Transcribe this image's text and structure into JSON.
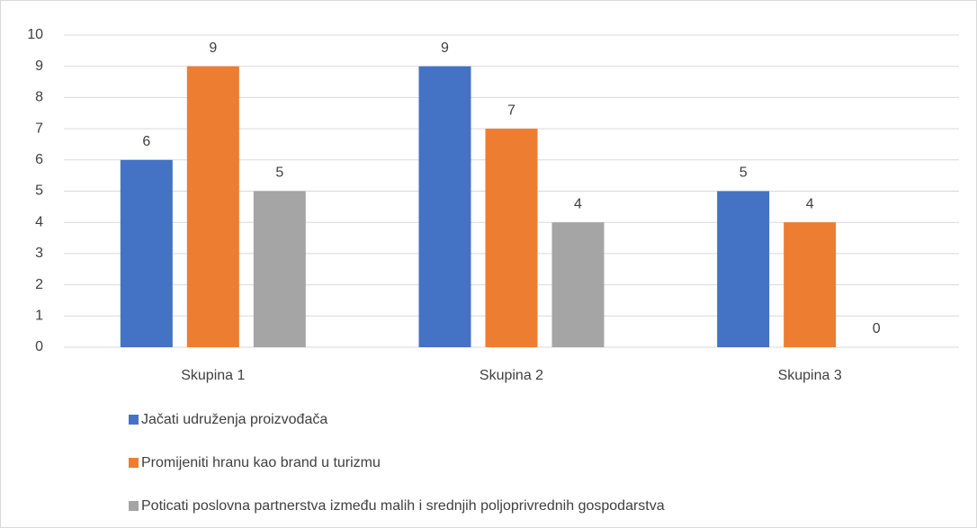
{
  "chart_data": {
    "type": "bar",
    "categories": [
      "Skupina 1",
      "Skupina 2",
      "Skupina 3"
    ],
    "series": [
      {
        "name": "Jačati udruženja proizvođača",
        "color": "#4472c4",
        "values": [
          6,
          9,
          5
        ]
      },
      {
        "name": "Promijeniti hranu kao brand u turizmu",
        "color": "#ed7d31",
        "values": [
          9,
          7,
          4
        ]
      },
      {
        "name": "Poticati poslovna partnerstva između malih i srednjih poljoprivrednih gospodarstva",
        "color": "#a5a5a5",
        "values": [
          5,
          4,
          0
        ]
      }
    ],
    "ylim": [
      0,
      10
    ],
    "yticks": [
      0,
      1,
      2,
      3,
      4,
      5,
      6,
      7,
      8,
      9,
      10
    ],
    "grid": true,
    "legend": "bottom"
  }
}
